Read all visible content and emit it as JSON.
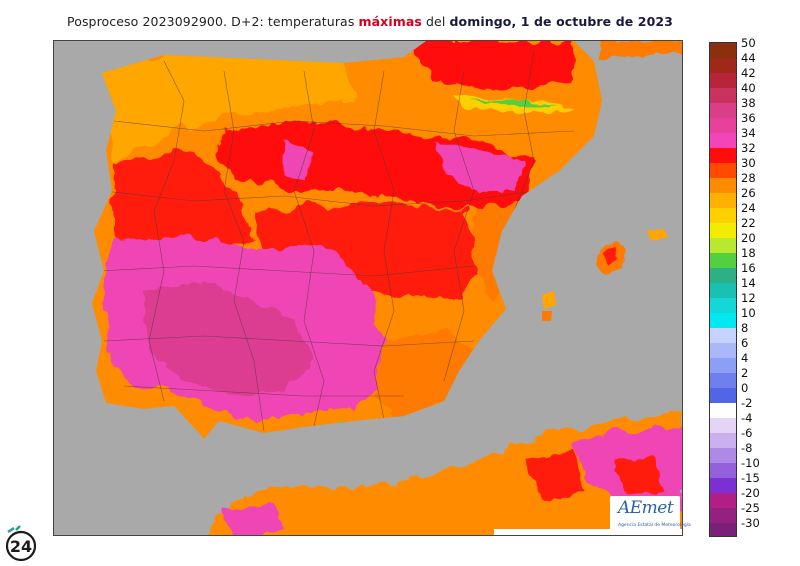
{
  "title": {
    "prefix": "Posproceso 2023092900. D+2: temperaturas ",
    "highlight": "máximas",
    "middle": " del ",
    "bold_suffix": "domingo, 1 de octubre de 2023"
  },
  "colorbar": {
    "labels": [
      "50",
      "44",
      "42",
      "40",
      "38",
      "36",
      "34",
      "32",
      "30",
      "28",
      "26",
      "24",
      "22",
      "20",
      "18",
      "16",
      "14",
      "12",
      "10",
      "8",
      "6",
      "4",
      "2",
      "0",
      "-2",
      "-4",
      "-6",
      "-8",
      "-10",
      "-15",
      "-20",
      "-25",
      "-30"
    ],
    "colors": [
      "#8b2f0e",
      "#a02818",
      "#b8243a",
      "#c8335f",
      "#d93e86",
      "#e8409d",
      "#f245b9",
      "#ff0d0d",
      "#ff4a00",
      "#ff8c00",
      "#ffb000",
      "#ffd000",
      "#f2ec00",
      "#b8e830",
      "#52d040",
      "#2eb086",
      "#19c0b4",
      "#14d8d8",
      "#00e8f0",
      "#c6d2ff",
      "#aab8fa",
      "#8c9ef5",
      "#6e80ee",
      "#5066e6",
      "#ffffff",
      "#e4d4f6",
      "#cab0ee",
      "#b088e6",
      "#9460dc",
      "#7c30d4",
      "#b01e86",
      "#942080",
      "#7a2078"
    ]
  },
  "map": {
    "sea_color": "#a9a9a9",
    "land_color": "#ff8a00"
  },
  "logos": {
    "aemet_name": "AEmet",
    "aemet_sub": "Agencia Estatal de Meteorología",
    "badge_text": "24"
  }
}
